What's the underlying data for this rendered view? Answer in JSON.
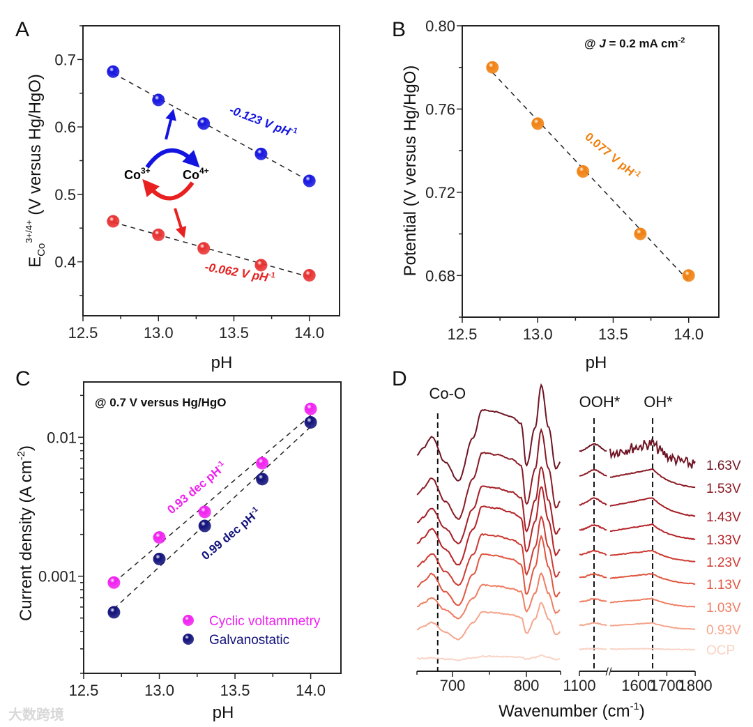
{
  "chart_data": [
    {
      "panel": "A",
      "type": "scatter",
      "xlabel": "pH",
      "ylabel": {
        "main": "E",
        "sub": "Co",
        "sup": "3+/4+",
        "rest": " (V versus Hg/HgO)"
      },
      "xlim": [
        12.5,
        14.2
      ],
      "ylim": [
        0.32,
        0.75
      ],
      "xticks": [
        12.5,
        13.0,
        13.5,
        14.0
      ],
      "xtick_labels": [
        "12.5",
        "13.0",
        "13.5",
        "14.0"
      ],
      "yticks": [
        0.4,
        0.5,
        0.6,
        0.7
      ],
      "ytick_labels": [
        "0.4",
        "0.5",
        "0.6",
        "0.7"
      ],
      "series": [
        {
          "name": "Co4+ upper",
          "color": "#1414e0",
          "x": [
            12.7,
            13.0,
            13.3,
            13.68,
            14.0
          ],
          "y": [
            0.682,
            0.64,
            0.605,
            0.56,
            0.52
          ],
          "fit_label": "-0.123 V pH",
          "fit_sup": "-1"
        },
        {
          "name": "Co3+ lower",
          "color": "#e83030",
          "x": [
            12.7,
            13.0,
            13.3,
            13.68,
            14.0
          ],
          "y": [
            0.46,
            0.44,
            0.42,
            0.395,
            0.38
          ],
          "fit_label": "-0.062 V pH",
          "fit_sup": "-1"
        }
      ],
      "scheme": {
        "left": "Co",
        "left_sup": "3+",
        "right": "Co",
        "right_sup": "4+"
      }
    },
    {
      "panel": "B",
      "type": "scatter",
      "xlabel": "pH",
      "ylabel": "Potential (V versus Hg/HgO)",
      "xlim": [
        12.5,
        14.2
      ],
      "ylim": [
        0.66,
        0.8
      ],
      "xticks": [
        12.5,
        13.0,
        13.5,
        14.0
      ],
      "xtick_labels": [
        "12.5",
        "13.0",
        "13.5",
        "14.0"
      ],
      "yticks": [
        0.68,
        0.72,
        0.76,
        0.8
      ],
      "ytick_labels": [
        "0.68",
        "0.72",
        "0.76",
        "0.80"
      ],
      "condition": {
        "prefix": "@ ",
        "var": "J",
        "rest": " = 0.2 mA cm",
        "sup": "-2"
      },
      "series": [
        {
          "name": "Potential",
          "color": "#f08010",
          "x": [
            12.7,
            13.0,
            13.3,
            13.68,
            14.0
          ],
          "y": [
            0.78,
            0.753,
            0.73,
            0.7,
            0.68
          ],
          "fit_label": "0.077 V pH",
          "fit_sup": "-1"
        }
      ]
    },
    {
      "panel": "C",
      "type": "scatter",
      "xlabel": "pH",
      "ylabel": {
        "main": "Current density (A cm",
        "sup": "-2",
        "end": ")"
      },
      "yscale": "log",
      "xlim": [
        12.5,
        14.2
      ],
      "ylim": [
        0.0002,
        0.025
      ],
      "xticks": [
        12.5,
        13.0,
        13.5,
        14.0
      ],
      "xtick_labels": [
        "12.5",
        "13.0",
        "13.5",
        "14.0"
      ],
      "yticks": [
        0.001,
        0.01
      ],
      "ytick_labels": [
        "0.001",
        "0.01"
      ],
      "condition": "@ 0.7 V versus Hg/HgO",
      "legend_position": "bottom-right",
      "series": [
        {
          "name": "Cyclic voltammetry",
          "color": "#f020f0",
          "x": [
            12.7,
            13.0,
            13.3,
            13.68,
            14.0
          ],
          "y": [
            0.0009,
            0.0019,
            0.0029,
            0.0065,
            0.016
          ],
          "fit_label": "0.93 dec pH",
          "fit_sup": "-1"
        },
        {
          "name": "Galvanostatic",
          "color": "#10107a",
          "x": [
            12.7,
            13.0,
            13.3,
            13.68,
            14.0
          ],
          "y": [
            0.00055,
            0.00133,
            0.0023,
            0.005,
            0.0128
          ],
          "fit_label": "0.99 dec pH",
          "fit_sup": "-1"
        }
      ]
    },
    {
      "panel": "D",
      "type": "line",
      "xlabel": {
        "main": "Wavenumber (cm",
        "sup": "-1",
        "end": ")"
      },
      "xaxis_break": "//",
      "xlim_left": [
        652,
        846
      ],
      "xlim_right": [
        1100,
        1800
      ],
      "xtick_labels_left": [
        "700",
        "800"
      ],
      "xticks_left": [
        700,
        800
      ],
      "xtick_labels_right": [
        "1100",
        "1600",
        "1700",
        "1800"
      ],
      "xticks_right": [
        1100,
        1600,
        1700,
        1800
      ],
      "markers": [
        {
          "label": "Co-O",
          "wavenumber": 680
        },
        {
          "label": "OOH*",
          "wavenumber": 1150
        },
        {
          "label": "OH*",
          "wavenumber": 1650
        }
      ],
      "series": [
        {
          "name": "1.63V",
          "color": "#6e1423",
          "offset_left_au": 2.92,
          "amp_left": 1.0,
          "offset_right_au": 2.65,
          "amp_right": 1.15,
          "noise": 8
        },
        {
          "name": "1.53V",
          "color": "#8a1a24",
          "offset_left_au": 2.35,
          "amp_left": 0.93,
          "offset_right_au": 2.32,
          "amp_right": 1.0,
          "noise": 1
        },
        {
          "name": "1.43V",
          "color": "#a31d25",
          "offset_left_au": 1.95,
          "amp_left": 0.8,
          "offset_right_au": 1.91,
          "amp_right": 1.0,
          "noise": 1
        },
        {
          "name": "1.33V",
          "color": "#b52227",
          "offset_left_au": 1.65,
          "amp_left": 0.82,
          "offset_right_au": 1.58,
          "amp_right": 0.8,
          "noise": 1
        },
        {
          "name": "1.23V",
          "color": "#cc3a32",
          "offset_left_au": 1.32,
          "amp_left": 0.71,
          "offset_right_au": 1.26,
          "amp_right": 0.6,
          "noise": 1
        },
        {
          "name": "1.13V",
          "color": "#e0553f",
          "offset_left_au": 1.03,
          "amp_left": 0.72,
          "offset_right_au": 0.94,
          "amp_right": 0.55,
          "noise": 1
        },
        {
          "name": "1.03V",
          "color": "#ef7d62",
          "offset_left_au": 0.75,
          "amp_left": 0.47,
          "offset_right_au": 0.61,
          "amp_right": 0.45,
          "noise": 1
        },
        {
          "name": "0.93V",
          "color": "#f5a58c",
          "offset_left_au": 0.42,
          "amp_left": 0.38,
          "offset_right_au": 0.29,
          "amp_right": 0.35,
          "noise": 1
        },
        {
          "name": "OCP",
          "color": "#fad3c5",
          "offset_left_au": 0.0,
          "amp_left": 0.05,
          "offset_right_au": 0.0,
          "amp_right": 0.05,
          "noise": 1
        }
      ]
    }
  ],
  "panel_labels": [
    "A",
    "B",
    "C",
    "D"
  ],
  "watermark": "大数跨境"
}
